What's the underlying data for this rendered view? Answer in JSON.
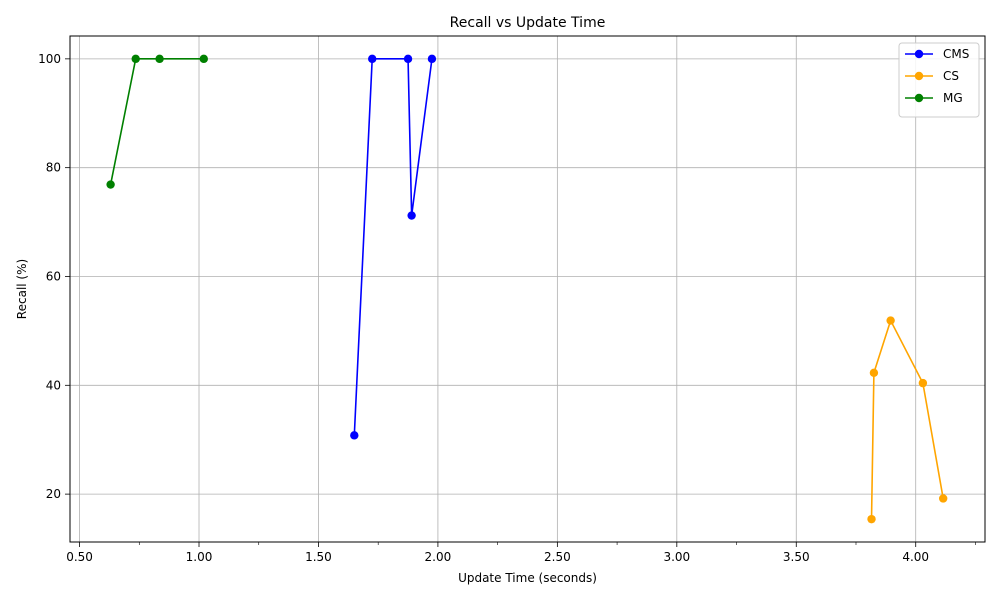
{
  "chart_data": {
    "type": "line",
    "title": "Recall vs Update Time",
    "xlabel": "Update Time (seconds)",
    "ylabel": "Recall (%)",
    "xlim": [
      0.46,
      4.29
    ],
    "ylim": [
      11.2,
      104.2
    ],
    "x_ticks": [
      0.5,
      1.0,
      1.5,
      2.0,
      2.5,
      3.0,
      3.5,
      4.0
    ],
    "x_tick_labels": [
      "0.50",
      "1.00",
      "1.50",
      "2.00",
      "2.50",
      "3.00",
      "3.50",
      "4.00"
    ],
    "x_minor_ticks": [
      0.25,
      0.75,
      1.25,
      1.75,
      2.25,
      2.75,
      3.25,
      3.75,
      4.25
    ],
    "y_ticks": [
      20,
      40,
      60,
      80,
      100
    ],
    "y_tick_labels": [
      "20",
      "40",
      "60",
      "80",
      "100"
    ],
    "grid": true,
    "legend_position": "top-right",
    "series": [
      {
        "name": "CMS",
        "color": "#0000ff",
        "points": [
          [
            1.65,
            30.8
          ],
          [
            1.725,
            100
          ],
          [
            1.875,
            100
          ],
          [
            1.89,
            71.2
          ],
          [
            1.975,
            100
          ]
        ]
      },
      {
        "name": "CS",
        "color": "#ffa500",
        "points": [
          [
            3.815,
            15.4
          ],
          [
            3.825,
            42.3
          ],
          [
            3.895,
            51.9
          ],
          [
            4.03,
            40.4
          ],
          [
            4.115,
            19.2
          ]
        ]
      },
      {
        "name": "MG",
        "color": "#008000",
        "points": [
          [
            0.63,
            76.9
          ],
          [
            0.735,
            100
          ],
          [
            0.835,
            100
          ],
          [
            1.02,
            100
          ]
        ]
      }
    ]
  }
}
